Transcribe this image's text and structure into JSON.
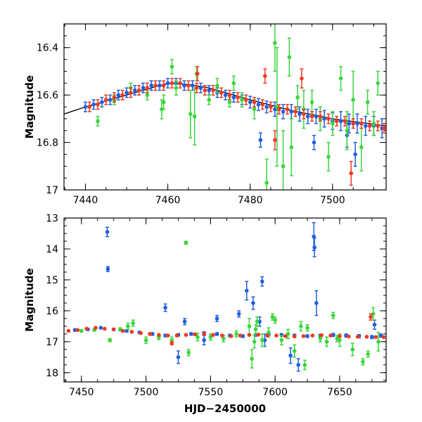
{
  "chart_data": [
    {
      "type": "scatter",
      "xlabel": "",
      "ylabel": "Magnitude",
      "xlim": [
        7434.8,
        7513
      ],
      "ylim": [
        16.3,
        17.0
      ],
      "y_inverted": true,
      "x_ticks": [
        7440,
        7460,
        7480,
        7500
      ],
      "y_ticks": [
        16.4,
        16.6,
        16.8,
        17
      ],
      "y_tick_labels": [
        "16.4",
        "16.6",
        "16.8",
        "17"
      ],
      "colors": {
        "blue": "#1f5fe0",
        "green": "#3ad63a",
        "red": "#ee3a22",
        "model": "#000000"
      },
      "model_curve": {
        "x": [
          7434.8,
          7440,
          7450,
          7460,
          7465,
          7470,
          7480,
          7490,
          7500,
          7513
        ],
        "y": [
          16.68,
          16.65,
          16.6,
          16.55,
          16.555,
          16.57,
          16.62,
          16.665,
          16.7,
          16.73
        ]
      },
      "series": [
        {
          "color": "blue",
          "x": [
            7440,
            7442,
            7444,
            7446,
            7448,
            7450,
            7452,
            7454,
            7456,
            7458,
            7460,
            7462,
            7464,
            7466,
            7468,
            7470,
            7472,
            7474,
            7476,
            7478,
            7480,
            7482,
            7484,
            7486,
            7488,
            7490,
            7492,
            7494,
            7496,
            7498,
            7500,
            7502,
            7504,
            7506,
            7508,
            7510,
            7512,
            7482.5,
            7495.5,
            7505.5,
            7503.5
          ],
          "y": [
            16.65,
            16.64,
            16.63,
            16.62,
            16.6,
            16.59,
            16.58,
            16.57,
            16.56,
            16.56,
            16.55,
            16.55,
            16.56,
            16.56,
            16.57,
            16.58,
            16.59,
            16.6,
            16.61,
            16.62,
            16.63,
            16.64,
            16.65,
            16.66,
            16.67,
            16.67,
            16.68,
            16.69,
            16.69,
            16.7,
            16.71,
            16.71,
            16.72,
            16.72,
            16.73,
            16.73,
            16.74,
            16.79,
            16.8,
            16.85,
            16.77
          ],
          "err": [
            0.02,
            0.02,
            0.02,
            0.02,
            0.02,
            0.02,
            0.02,
            0.02,
            0.02,
            0.02,
            0.02,
            0.02,
            0.02,
            0.02,
            0.02,
            0.02,
            0.02,
            0.02,
            0.02,
            0.02,
            0.025,
            0.025,
            0.025,
            0.03,
            0.03,
            0.03,
            0.03,
            0.03,
            0.03,
            0.035,
            0.035,
            0.04,
            0.04,
            0.04,
            0.04,
            0.04,
            0.04,
            0.03,
            0.03,
            0.05,
            0.05
          ]
        },
        {
          "color": "green",
          "x": [
            7443,
            7447,
            7451,
            7455,
            7459,
            7462,
            7465.5,
            7466.5,
            7470,
            7475,
            7478,
            7481,
            7484,
            7486.5,
            7488,
            7490,
            7493,
            7497,
            7500,
            7503.5,
            7505,
            7507,
            7510,
            7458.5,
            7461,
            7467,
            7472,
            7476,
            7486,
            7489.5,
            7491.5,
            7495,
            7499,
            7502,
            7508.5,
            7511
          ],
          "y": [
            16.71,
            16.62,
            16.57,
            16.6,
            16.63,
            16.57,
            16.68,
            16.69,
            16.62,
            16.63,
            16.62,
            16.66,
            16.97,
            16.65,
            16.9,
            16.82,
            16.66,
            16.7,
            16.72,
            16.75,
            16.62,
            16.82,
            16.72,
            16.66,
            16.48,
            16.51,
            16.56,
            16.55,
            16.38,
            16.44,
            16.61,
            16.63,
            16.86,
            16.53,
            16.63,
            16.55
          ],
          "err": [
            0.02,
            0.02,
            0.02,
            0.02,
            0.03,
            0.03,
            0.1,
            0.12,
            0.02,
            0.02,
            0.03,
            0.04,
            0.1,
            0.25,
            0.15,
            0.12,
            0.08,
            0.05,
            0.05,
            0.08,
            0.12,
            0.1,
            0.05,
            0.04,
            0.03,
            0.03,
            0.03,
            0.03,
            0.12,
            0.08,
            0.05,
            0.05,
            0.06,
            0.05,
            0.05,
            0.05
          ]
        },
        {
          "color": "red",
          "x": [
            7441,
            7443,
            7445,
            7447,
            7449,
            7451,
            7453,
            7455,
            7457,
            7459,
            7461,
            7463,
            7465,
            7467,
            7469,
            7471,
            7473,
            7475,
            7477,
            7479,
            7481,
            7483,
            7485,
            7487,
            7489,
            7491,
            7493,
            7495,
            7497,
            7499,
            7501,
            7503,
            7505,
            7507,
            7509,
            7511,
            7512.5,
            7467.2,
            7483.6,
            7486,
            7492.5,
            7504.5
          ],
          "y": [
            16.65,
            16.64,
            16.62,
            16.61,
            16.6,
            16.59,
            16.58,
            16.57,
            16.56,
            16.56,
            16.55,
            16.55,
            16.56,
            16.57,
            16.58,
            16.58,
            16.59,
            16.6,
            16.61,
            16.62,
            16.63,
            16.64,
            16.65,
            16.66,
            16.66,
            16.67,
            16.68,
            16.69,
            16.69,
            16.7,
            16.71,
            16.71,
            16.72,
            16.72,
            16.73,
            16.73,
            16.74,
            16.51,
            16.52,
            16.79,
            16.53,
            16.93
          ],
          "err": [
            0.02,
            0.02,
            0.02,
            0.02,
            0.02,
            0.02,
            0.02,
            0.02,
            0.02,
            0.02,
            0.02,
            0.02,
            0.02,
            0.02,
            0.02,
            0.02,
            0.02,
            0.02,
            0.02,
            0.02,
            0.02,
            0.02,
            0.02,
            0.02,
            0.02,
            0.02,
            0.02,
            0.02,
            0.02,
            0.02,
            0.02,
            0.02,
            0.02,
            0.02,
            0.02,
            0.02,
            0.02,
            0.03,
            0.03,
            0.04,
            0.04,
            0.05
          ]
        }
      ]
    },
    {
      "type": "scatter",
      "xlabel": "HJD−2450000",
      "ylabel": "Magnitude",
      "xlim": [
        7436.5,
        7686
      ],
      "ylim": [
        13.0,
        18.3
      ],
      "y_inverted": true,
      "x_ticks": [
        7450,
        7500,
        7550,
        7600,
        7650
      ],
      "y_ticks": [
        13,
        14,
        15,
        16,
        17,
        18
      ],
      "y_tick_labels": [
        "13",
        "14",
        "15",
        "16",
        "17",
        "18"
      ],
      "colors": {
        "blue": "#1f5fe0",
        "green": "#3ad63a",
        "red": "#ee3a22"
      },
      "series": [
        {
          "color": "blue",
          "x": [
            7445,
            7455,
            7465,
            7475,
            7485,
            7495,
            7505,
            7515,
            7525,
            7535,
            7545,
            7555,
            7565,
            7575,
            7585,
            7595,
            7605,
            7615,
            7625,
            7635,
            7645,
            7655,
            7665,
            7675,
            7682,
            7470,
            7470.5,
            7515,
            7530,
            7545,
            7555,
            7572,
            7578,
            7583,
            7588,
            7590,
            7618,
            7630,
            7630.5,
            7632,
            7677,
            7525,
            7592,
            7612
          ],
          "y": [
            16.62,
            16.6,
            16.55,
            16.6,
            16.65,
            16.7,
            16.75,
            16.8,
            16.78,
            16.75,
            16.72,
            16.75,
            16.8,
            16.82,
            16.78,
            16.75,
            16.78,
            16.8,
            16.82,
            16.8,
            16.78,
            16.8,
            16.82,
            16.85,
            16.8,
            13.45,
            14.65,
            15.9,
            16.35,
            16.95,
            16.25,
            16.1,
            15.35,
            15.75,
            16.35,
            15.05,
            17.75,
            13.6,
            13.95,
            15.75,
            16.45,
            17.5,
            16.95,
            17.45
          ],
          "err": [
            0.03,
            0.03,
            0.03,
            0.03,
            0.03,
            0.03,
            0.04,
            0.04,
            0.04,
            0.04,
            0.04,
            0.04,
            0.04,
            0.04,
            0.04,
            0.04,
            0.04,
            0.04,
            0.04,
            0.04,
            0.05,
            0.05,
            0.05,
            0.05,
            0.05,
            0.15,
            0.08,
            0.12,
            0.1,
            0.15,
            0.1,
            0.1,
            0.3,
            0.2,
            0.15,
            0.15,
            0.2,
            0.45,
            0.3,
            0.4,
            0.15,
            0.2,
            0.2,
            0.25
          ]
        },
        {
          "color": "green",
          "x": [
            7450,
            7460,
            7472,
            7480,
            7486,
            7490,
            7500,
            7510,
            7520,
            7531,
            7533,
            7540,
            7550,
            7560,
            7570,
            7580,
            7582,
            7584,
            7585,
            7590,
            7595,
            7600,
            7605,
            7610,
            7615,
            7620,
            7625,
            7635,
            7640,
            7645,
            7650,
            7660,
            7668,
            7672,
            7676,
            7680,
            7598,
            7586,
            7623,
            7648
          ],
          "y": [
            16.65,
            16.62,
            16.95,
            16.6,
            16.5,
            16.4,
            16.95,
            16.85,
            16.95,
            13.8,
            17.35,
            16.85,
            16.85,
            16.9,
            16.75,
            16.5,
            17.55,
            17.0,
            16.6,
            16.95,
            16.7,
            16.3,
            16.95,
            16.75,
            17.3,
            16.5,
            16.55,
            16.9,
            17.0,
            16.15,
            16.95,
            17.25,
            17.65,
            17.4,
            16.1,
            17.0,
            16.2,
            16.35,
            17.75,
            16.9
          ],
          "err": [
            0.03,
            0.03,
            0.05,
            0.05,
            0.1,
            0.1,
            0.1,
            0.08,
            0.1,
            0.05,
            0.1,
            0.12,
            0.1,
            0.1,
            0.1,
            0.25,
            0.3,
            0.2,
            0.15,
            0.2,
            0.15,
            0.1,
            0.15,
            0.15,
            0.2,
            0.15,
            0.1,
            0.1,
            0.15,
            0.1,
            0.2,
            0.2,
            0.1,
            0.1,
            0.2,
            0.3,
            0.1,
            0.15,
            0.15,
            0.1
          ]
        },
        {
          "color": "red",
          "x": [
            7440,
            7447,
            7454,
            7461,
            7468,
            7475,
            7482,
            7489,
            7496,
            7503,
            7510,
            7517,
            7524,
            7531,
            7538,
            7545,
            7552,
            7559,
            7566,
            7573,
            7580,
            7587,
            7594,
            7601,
            7608,
            7615,
            7622,
            7629,
            7636,
            7643,
            7650,
            7657,
            7664,
            7671,
            7678,
            7684,
            7674,
            7520
          ],
          "y": [
            16.65,
            16.62,
            16.58,
            16.55,
            16.58,
            16.6,
            16.65,
            16.68,
            16.72,
            16.75,
            16.78,
            16.8,
            16.8,
            16.78,
            16.76,
            16.75,
            16.78,
            16.8,
            16.82,
            16.8,
            16.78,
            16.77,
            16.8,
            16.8,
            16.82,
            16.83,
            16.82,
            16.8,
            16.79,
            16.8,
            16.82,
            16.83,
            16.84,
            16.84,
            16.85,
            16.85,
            16.2,
            17.05
          ],
          "err": [
            0.02,
            0.02,
            0.02,
            0.02,
            0.02,
            0.02,
            0.02,
            0.02,
            0.02,
            0.02,
            0.02,
            0.02,
            0.02,
            0.02,
            0.02,
            0.02,
            0.02,
            0.02,
            0.02,
            0.02,
            0.02,
            0.02,
            0.02,
            0.02,
            0.02,
            0.02,
            0.02,
            0.02,
            0.02,
            0.02,
            0.02,
            0.02,
            0.02,
            0.02,
            0.02,
            0.02,
            0.1,
            0.05
          ]
        }
      ]
    }
  ]
}
